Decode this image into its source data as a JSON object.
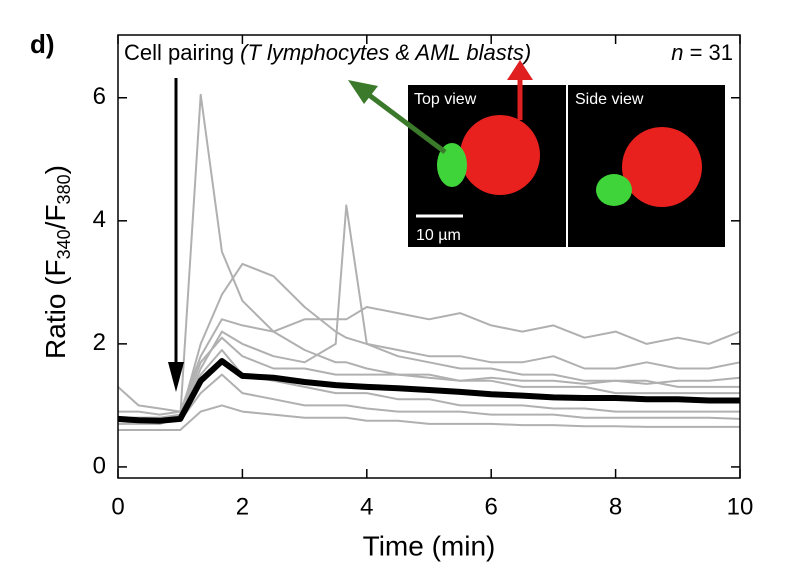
{
  "panel_label": "d)",
  "chart_data": {
    "type": "line",
    "annotation": "Cell pairing ",
    "annotation_italic": "(T lymphocytes & AML blasts)",
    "n_label": "n",
    "n_value": " = 31",
    "inset_labels": [
      "Top view",
      "Side view",
      "10 µm"
    ],
    "x_label": "Time (min)",
    "y_label": [
      "Ratio (F",
      "340",
      "/F",
      "380",
      ")"
    ],
    "x": [
      0,
      0.33,
      0.67,
      1,
      1.33,
      1.67,
      2,
      2.5,
      3,
      3.5,
      3.67,
      4,
      4.5,
      5,
      5.5,
      6,
      6.5,
      7,
      7.5,
      8,
      8.5,
      9,
      9.5,
      10
    ],
    "series": [
      {
        "color": "#b0b0b0",
        "values": [
          0.7,
          0.72,
          0.7,
          0.8,
          6.05,
          3.5,
          2.7,
          2.2,
          1.9,
          1.7,
          1.7,
          1.6,
          1.5,
          1.5,
          1.4,
          1.4,
          1.3,
          1.3,
          1.3,
          1.2,
          1.2,
          1.2,
          1.2,
          1.2
        ]
      },
      {
        "color": "#b0b0b0",
        "values": [
          0.8,
          0.8,
          0.8,
          0.8,
          1.6,
          2.2,
          2.0,
          1.8,
          1.7,
          2.0,
          4.25,
          2.0,
          1.8,
          1.7,
          1.6,
          1.6,
          1.5,
          1.5,
          1.4,
          1.4,
          1.4,
          1.3,
          1.3,
          1.3
        ]
      },
      {
        "color": "#b0b0b0",
        "values": [
          0.9,
          0.9,
          0.85,
          0.9,
          1.8,
          2.4,
          2.3,
          2.2,
          2.4,
          2.4,
          2.4,
          2.6,
          2.5,
          2.4,
          2.5,
          2.3,
          2.2,
          2.3,
          2.1,
          2.2,
          2.0,
          2.1,
          2.0,
          2.2
        ]
      },
      {
        "color": "#b0b0b0",
        "values": [
          0.7,
          0.7,
          0.7,
          0.8,
          2.0,
          2.8,
          3.3,
          3.1,
          2.6,
          2.2,
          2.1,
          2.0,
          1.9,
          1.8,
          1.8,
          1.7,
          1.7,
          1.8,
          1.6,
          1.6,
          1.7,
          1.6,
          1.6,
          1.7
        ]
      },
      {
        "color": "#b0b0b0",
        "values": [
          0.6,
          0.6,
          0.6,
          0.6,
          0.9,
          1.0,
          0.9,
          0.85,
          0.8,
          0.8,
          0.8,
          0.75,
          0.75,
          0.7,
          0.7,
          0.7,
          0.68,
          0.68,
          0.66,
          0.66,
          0.65,
          0.65,
          0.65,
          0.65
        ]
      },
      {
        "color": "#b0b0b0",
        "values": [
          1.3,
          1.0,
          0.95,
          0.9,
          1.5,
          1.9,
          1.5,
          1.4,
          1.3,
          1.2,
          1.2,
          1.2,
          1.1,
          1.1,
          1.0,
          1.0,
          1.0,
          0.95,
          0.95,
          0.9,
          0.9,
          0.9,
          0.9,
          0.9
        ]
      },
      {
        "color": "#b0b0b0",
        "values": [
          0.75,
          0.75,
          0.72,
          0.75,
          1.2,
          1.5,
          1.2,
          1.1,
          1.0,
          1.0,
          1.0,
          0.95,
          0.9,
          0.9,
          0.9,
          0.85,
          0.85,
          0.85,
          0.8,
          0.8,
          0.8,
          0.8,
          0.8,
          0.78
        ]
      },
      {
        "color": "#b0b0b0",
        "values": [
          0.8,
          0.8,
          0.8,
          0.85,
          1.7,
          2.1,
          1.8,
          1.6,
          1.6,
          1.5,
          1.5,
          1.5,
          1.5,
          1.45,
          1.4,
          1.45,
          1.4,
          1.4,
          1.35,
          1.4,
          1.35,
          1.4,
          1.4,
          1.45
        ]
      }
    ],
    "mean": {
      "color": "#000000",
      "values": [
        0.78,
        0.76,
        0.75,
        0.78,
        1.4,
        1.72,
        1.48,
        1.45,
        1.38,
        1.33,
        1.32,
        1.3,
        1.28,
        1.25,
        1.22,
        1.18,
        1.16,
        1.13,
        1.12,
        1.12,
        1.1,
        1.1,
        1.08,
        1.08
      ]
    },
    "xlim": [
      0,
      10
    ],
    "ylim": [
      -0.18,
      7.02
    ],
    "xticks": [
      0,
      2,
      4,
      6,
      8,
      10
    ],
    "yticks": [
      0,
      2,
      4,
      6
    ]
  }
}
